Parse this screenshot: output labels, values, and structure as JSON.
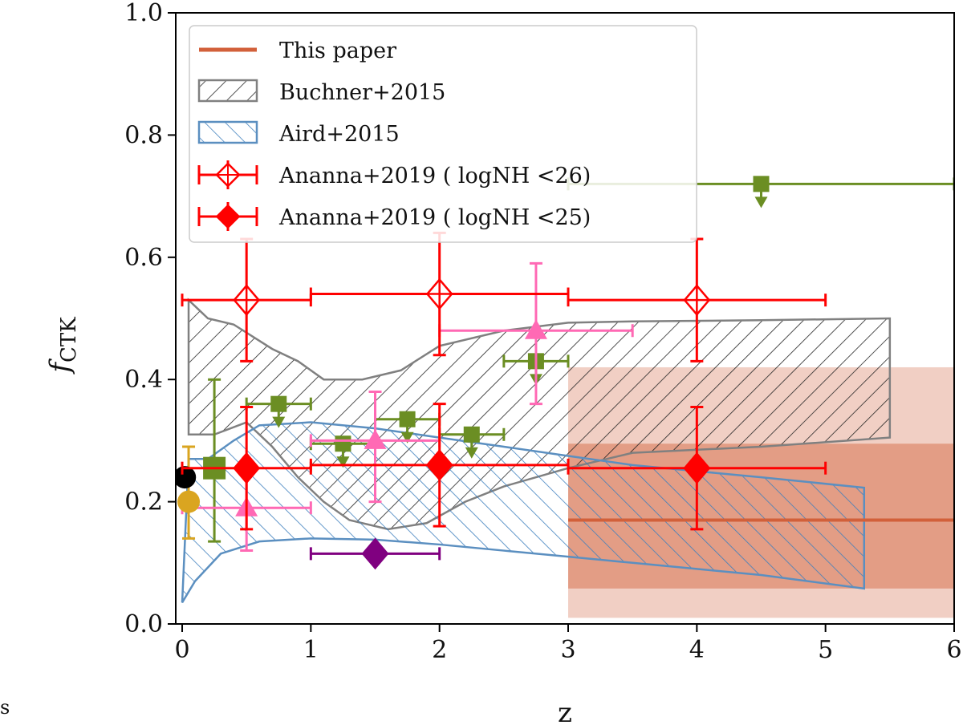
{
  "chart_data": {
    "type": "scatter",
    "xlabel": "z",
    "ylabel": "f",
    "ylabel_sub": "CTK",
    "xlim": [
      -0.05,
      6
    ],
    "ylim": [
      0,
      1
    ],
    "xticks": [
      "0",
      "1",
      "2",
      "3",
      "4",
      "5",
      "6"
    ],
    "yticks": [
      "0.0",
      "0.2",
      "0.4",
      "0.6",
      "0.8",
      "1.0"
    ],
    "legend_position": "top-left",
    "colors": {
      "this_paper": "#d2603a",
      "buchner": "#808080",
      "aird": "#5b8fc0",
      "ananna": "#ff0000",
      "green": "#6b8e23",
      "pink": "#ff69b4",
      "purple": "#800080",
      "gold": "#daa520",
      "black": "#000000"
    },
    "this_paper": {
      "label": "This paper",
      "x_range": [
        3,
        6
      ],
      "value": 0.17,
      "band_inner": [
        0.058,
        0.295
      ],
      "band_outer": [
        0.01,
        0.42
      ]
    },
    "buchner_2015": {
      "label": "Buchner+2015",
      "upper": [
        [
          0.05,
          0.53
        ],
        [
          0.2,
          0.5
        ],
        [
          0.4,
          0.49
        ],
        [
          0.7,
          0.45
        ],
        [
          0.9,
          0.43
        ],
        [
          1.1,
          0.4
        ],
        [
          1.4,
          0.4
        ],
        [
          1.7,
          0.415
        ],
        [
          2.0,
          0.455
        ],
        [
          2.5,
          0.48
        ],
        [
          3.0,
          0.493
        ],
        [
          3.5,
          0.495
        ],
        [
          4.5,
          0.497
        ],
        [
          5.5,
          0.5
        ]
      ],
      "lower": [
        [
          0.05,
          0.31
        ],
        [
          0.25,
          0.31
        ],
        [
          0.5,
          0.33
        ],
        [
          0.7,
          0.29
        ],
        [
          0.9,
          0.24
        ],
        [
          1.1,
          0.2
        ],
        [
          1.3,
          0.17
        ],
        [
          1.6,
          0.155
        ],
        [
          1.9,
          0.165
        ],
        [
          2.2,
          0.2
        ],
        [
          2.5,
          0.225
        ],
        [
          3.0,
          0.255
        ],
        [
          3.5,
          0.28
        ],
        [
          4.5,
          0.29
        ],
        [
          5.5,
          0.305
        ]
      ]
    },
    "aird_2015": {
      "label": "Aird+2015",
      "upper": [
        [
          0.05,
          0.27
        ],
        [
          0.2,
          0.27
        ],
        [
          0.4,
          0.3
        ],
        [
          0.6,
          0.325
        ],
        [
          1.0,
          0.33
        ],
        [
          1.5,
          0.32
        ],
        [
          2.0,
          0.305
        ],
        [
          2.5,
          0.29
        ],
        [
          3.0,
          0.275
        ],
        [
          3.5,
          0.26
        ],
        [
          4.0,
          0.25
        ],
        [
          4.5,
          0.24
        ],
        [
          5.3,
          0.223
        ]
      ],
      "lower": [
        [
          0.0,
          0.035
        ],
        [
          0.1,
          0.07
        ],
        [
          0.3,
          0.115
        ],
        [
          0.6,
          0.135
        ],
        [
          1.0,
          0.14
        ],
        [
          1.5,
          0.138
        ],
        [
          2.0,
          0.13
        ],
        [
          2.5,
          0.12
        ],
        [
          3.0,
          0.11
        ],
        [
          3.5,
          0.1
        ],
        [
          4.0,
          0.09
        ],
        [
          4.5,
          0.08
        ],
        [
          5.3,
          0.058
        ]
      ]
    },
    "ananna_lt26": {
      "label": "Ananna+2019 ( logNH <26)",
      "points": [
        {
          "x": 0.5,
          "y": 0.53,
          "x_err": [
            0.0,
            1.0
          ],
          "y_err": [
            0.43,
            0.63
          ]
        },
        {
          "x": 2.0,
          "y": 0.54,
          "x_err": [
            1.0,
            3.0
          ],
          "y_err": [
            0.44,
            0.64
          ]
        },
        {
          "x": 4.0,
          "y": 0.53,
          "x_err": [
            3.0,
            5.0
          ],
          "y_err": [
            0.43,
            0.63
          ]
        }
      ]
    },
    "ananna_lt25": {
      "label": "Ananna+2019 ( logNH <25)",
      "points": [
        {
          "x": 0.5,
          "y": 0.255,
          "x_err": [
            0.0,
            1.0
          ],
          "y_err": [
            0.155,
            0.355
          ]
        },
        {
          "x": 2.0,
          "y": 0.26,
          "x_err": [
            1.0,
            3.0
          ],
          "y_err": [
            0.16,
            0.36
          ]
        },
        {
          "x": 4.0,
          "y": 0.255,
          "x_err": [
            3.0,
            5.0
          ],
          "y_err": [
            0.155,
            0.355
          ]
        }
      ]
    },
    "green_squares": [
      {
        "x": 0.25,
        "y": 0.255,
        "x_err": null,
        "y_err": [
          0.135,
          0.4
        ],
        "upper_limit": false
      },
      {
        "x": 0.75,
        "y": 0.36,
        "x_err": [
          0.5,
          1.0
        ],
        "y_err": null,
        "upper_limit": true
      },
      {
        "x": 1.25,
        "y": 0.295,
        "x_err": [
          1.0,
          1.5
        ],
        "y_err": null,
        "upper_limit": true
      },
      {
        "x": 1.75,
        "y": 0.335,
        "x_err": [
          1.5,
          2.0
        ],
        "y_err": null,
        "upper_limit": true
      },
      {
        "x": 2.25,
        "y": 0.31,
        "x_err": [
          2.0,
          2.5
        ],
        "y_err": null,
        "upper_limit": true
      },
      {
        "x": 2.75,
        "y": 0.43,
        "x_err": [
          2.5,
          3.0
        ],
        "y_err": null,
        "upper_limit": true
      },
      {
        "x": 4.5,
        "y": 0.72,
        "x_err": [
          3.0,
          6.0
        ],
        "y_err": null,
        "upper_limit": true
      }
    ],
    "pink_triangles": [
      {
        "x": 0.5,
        "y": 0.19,
        "x_err": [
          0.0,
          1.0
        ],
        "y_err": [
          0.12,
          0.26
        ]
      },
      {
        "x": 1.5,
        "y": 0.3,
        "x_err": [
          1.0,
          2.0
        ],
        "y_err": [
          0.2,
          0.38
        ]
      },
      {
        "x": 2.75,
        "y": 0.48,
        "x_err": [
          2.0,
          3.5
        ],
        "y_err": [
          0.36,
          0.59
        ]
      }
    ],
    "purple_diamond": {
      "x": 1.5,
      "y": 0.115,
      "x_err": [
        1.0,
        2.0
      ]
    },
    "gold_circle": {
      "x": 0.05,
      "y": 0.2,
      "y_err": [
        0.14,
        0.29
      ]
    },
    "black_circle": {
      "x": 0.02,
      "y": 0.24
    }
  },
  "stray_text": "s"
}
